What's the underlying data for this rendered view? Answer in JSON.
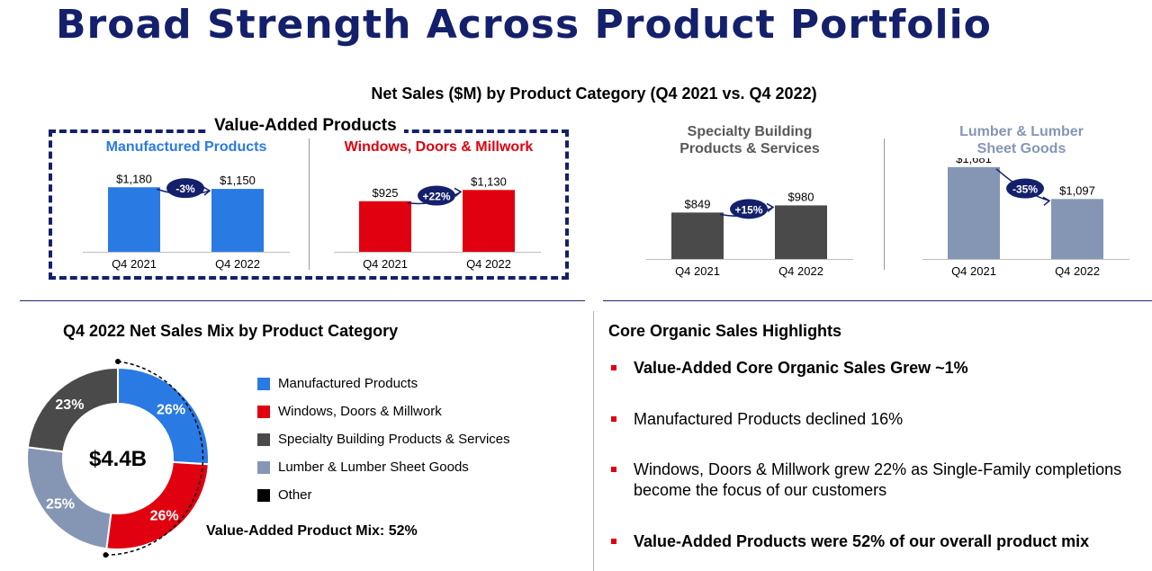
{
  "title": "Broad Strength Across Product Portfolio",
  "subtitle": "Net Sales ($M) by Product Category (Q4 2021 vs. Q4 2022)",
  "value_added_label": "Value-Added Products",
  "colors": {
    "navy": "#14206b",
    "manufactured": "#2a7ae4",
    "windows": "#e0000f",
    "specialty": "#4a4a4a",
    "lumber": "#8596b5",
    "other": "#000000"
  },
  "chart_data": [
    {
      "type": "bar",
      "title": "Manufactured Products",
      "categories": [
        "Q4 2021",
        "Q4 2022"
      ],
      "values": [
        1180,
        1150
      ],
      "labels": [
        "$1,180",
        "$1,150"
      ],
      "change": "-3%"
    },
    {
      "type": "bar",
      "title": "Windows, Doors & Millwork",
      "categories": [
        "Q4 2021",
        "Q4 2022"
      ],
      "values": [
        925,
        1130
      ],
      "labels": [
        "$925",
        "$1,130"
      ],
      "change": "+22%"
    },
    {
      "type": "bar",
      "title": "Specialty Building Products & Services",
      "title_lines": [
        "Specialty Building",
        "Products & Services"
      ],
      "categories": [
        "Q4 2021",
        "Q4 2022"
      ],
      "values": [
        849,
        980
      ],
      "labels": [
        "$849",
        "$980"
      ],
      "change": "+15%"
    },
    {
      "type": "bar",
      "title": "Lumber & Lumber Sheet Goods",
      "title_lines": [
        "Lumber & Lumber",
        "Sheet Goods"
      ],
      "categories": [
        "Q4 2021",
        "Q4 2022"
      ],
      "values": [
        1681,
        1097
      ],
      "labels": [
        "$1,681",
        "$1,097"
      ],
      "change": "-35%"
    },
    {
      "type": "pie",
      "title": "Q4 2022 Net Sales Mix by Product Category",
      "center_label": "$4.4B",
      "slices": [
        {
          "name": "Manufactured Products",
          "value": 26,
          "label": "26%"
        },
        {
          "name": "Windows, Doors & Millwork",
          "value": 26,
          "label": "26%"
        },
        {
          "name": "Lumber & Lumber Sheet Goods",
          "value": 25,
          "label": "25%"
        },
        {
          "name": "Specialty Building Products & Services",
          "value": 23,
          "label": "23%"
        }
      ],
      "legend": [
        "Manufactured Products",
        "Windows, Doors & Millwork",
        "Specialty Building Products & Services",
        "Lumber & Lumber Sheet Goods",
        "Other"
      ],
      "annotation": "Value-Added Product Mix: 52%"
    }
  ],
  "highlights": {
    "title": "Core Organic Sales Highlights",
    "items": [
      {
        "text": "Value-Added Core Organic Sales Grew ~1%",
        "bold": true
      },
      {
        "text": "Manufactured Products declined 16%",
        "bold": false
      },
      {
        "text": "Windows, Doors & Millwork grew 22% as Single-Family completions become the focus of our customers",
        "bold": false
      },
      {
        "text": "Value-Added Products were 52% of our overall product mix",
        "bold": true
      }
    ]
  }
}
